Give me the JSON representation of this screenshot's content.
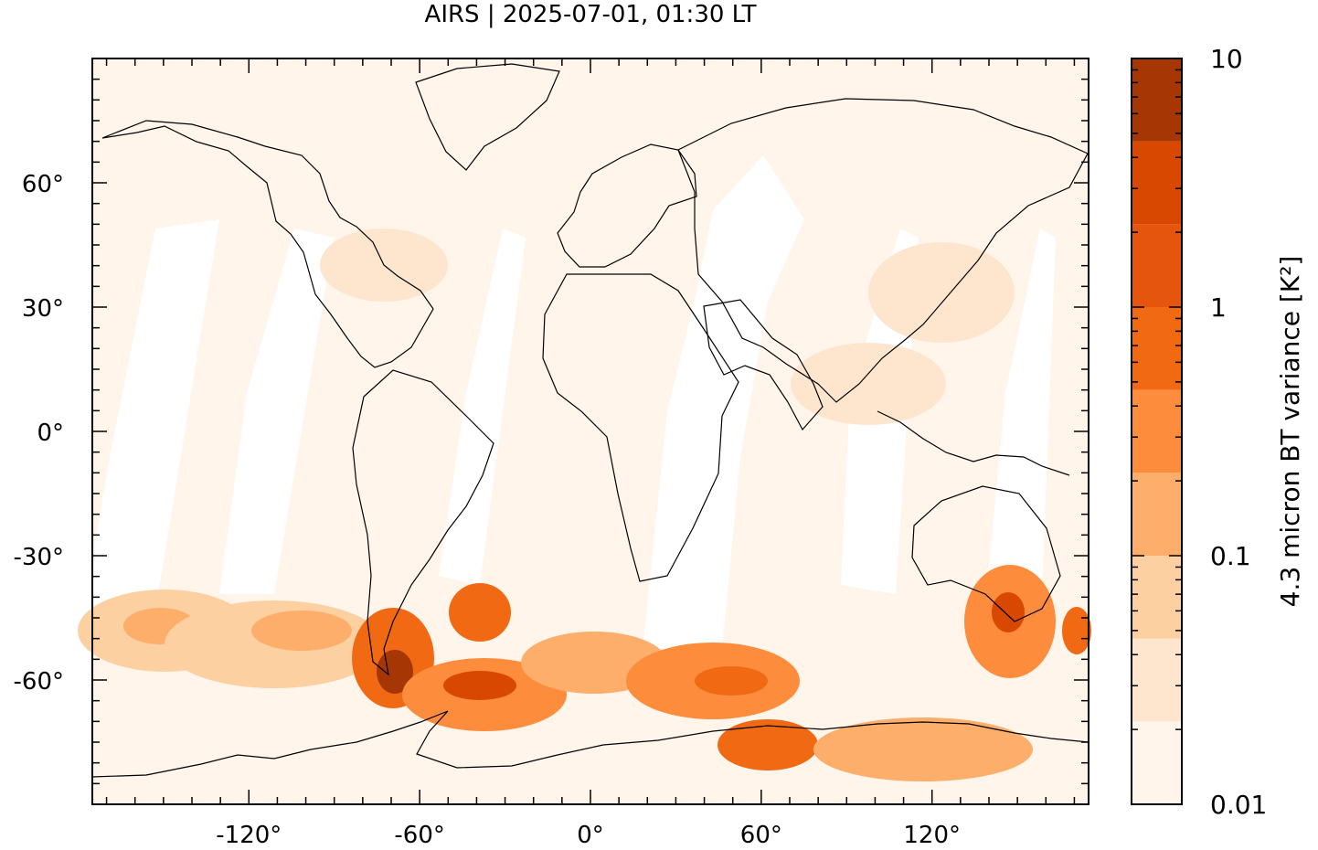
{
  "title": "AIRS | 2025-07-01, 01:30 LT",
  "map": {
    "projection": "plate carree",
    "lon_range": [
      -175,
      175
    ],
    "lat_range": [
      -90,
      90
    ],
    "lat_ticks": [
      {
        "value": 60,
        "label": "60°"
      },
      {
        "value": 30,
        "label": "30°"
      },
      {
        "value": 0,
        "label": "0°"
      },
      {
        "value": -30,
        "label": "-30°"
      },
      {
        "value": -60,
        "label": "-60°"
      }
    ],
    "lon_ticks": [
      {
        "value": -120,
        "label": "-120°"
      },
      {
        "value": -60,
        "label": "-60°"
      },
      {
        "value": 0,
        "label": "0°"
      },
      {
        "value": 60,
        "label": "60°"
      },
      {
        "value": 120,
        "label": "120°"
      }
    ],
    "background_color": "#fff5eb",
    "coastline_color": "#000000"
  },
  "colorbar": {
    "label": "4.3 micron BT variance [K²]",
    "scale": "log",
    "range": [
      0.01,
      10
    ],
    "tick_labels": [
      {
        "value": 10,
        "label": "10"
      },
      {
        "value": 1,
        "label": "1"
      },
      {
        "value": 0.1,
        "label": "0.1"
      },
      {
        "value": 0.01,
        "label": "0.01"
      }
    ],
    "colors": [
      "#fff5eb",
      "#fee6ce",
      "#fdd0a2",
      "#fdae6b",
      "#fd8d3c",
      "#f16913",
      "#e6550d",
      "#d94801",
      "#a63603"
    ]
  }
}
